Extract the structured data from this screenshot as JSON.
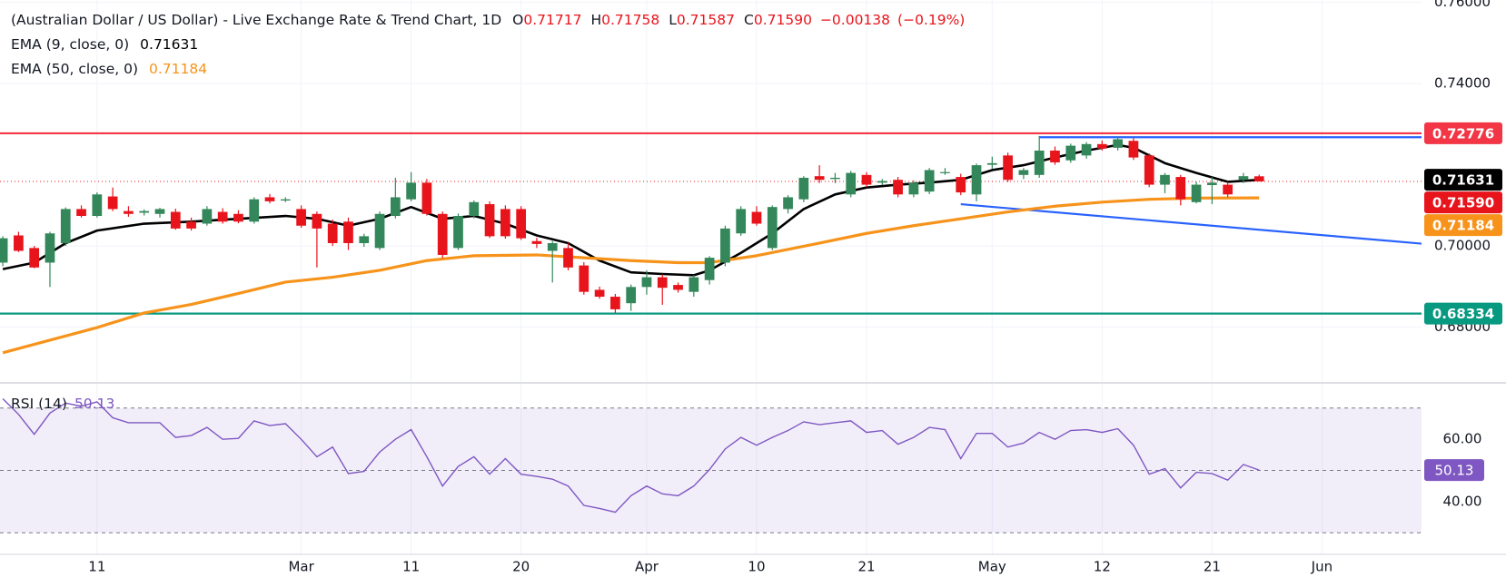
{
  "chart_data": [
    {
      "type": "candlestick",
      "title": "(Australian Dollar / US Dollar) - Live Exchange Rate & Trend Chart, 1D",
      "legend_keys": [
        "O",
        "H",
        "L",
        "C"
      ],
      "legend_values": [
        0.71717,
        0.71758,
        0.71587,
        {
          "value": 0.7159,
          "label": "0.71590"
        }
      ],
      "change": {
        "value": -0.00138,
        "label": "−0.00138"
      },
      "change_pct": {
        "value": -0.19,
        "label": "(−0.19%)"
      },
      "legend_color": "#e8141c",
      "up_color": "#33875a",
      "down_color": "#e8141c",
      "xlim": [
        -0.18,
        90.34
      ],
      "ylim": [
        0.6665,
        0.7606
      ],
      "yticks": [
        {
          "value": 0.76,
          "label": "0.76000"
        },
        {
          "value": 0.74,
          "label": "0.74000"
        },
        {
          "value": 0.7,
          "label": "0.70000"
        },
        {
          "value": 0.68,
          "label": "0.68000"
        }
      ],
      "grid": true,
      "ohlc": [
        [
          0.6959,
          0.7024,
          0.695,
          0.7019
        ],
        [
          0.7026,
          0.7035,
          0.6985,
          0.6988
        ],
        [
          0.6995,
          0.7,
          0.6945,
          0.6947
        ],
        [
          0.6959,
          0.7035,
          0.6899,
          0.7031
        ],
        [
          0.7007,
          0.7095,
          0.7,
          0.7091
        ],
        [
          0.7091,
          0.71,
          0.707,
          0.7074
        ],
        [
          0.7074,
          0.7132,
          0.707,
          0.7127
        ],
        [
          0.7122,
          0.7144,
          0.7086,
          0.7091
        ],
        [
          0.7086,
          0.7098,
          0.7072,
          0.7079
        ],
        [
          0.7082,
          0.709,
          0.7075,
          0.7086
        ],
        [
          0.7079,
          0.7094,
          0.707,
          0.7091
        ],
        [
          0.7084,
          0.7092,
          0.704,
          0.7043
        ],
        [
          0.706,
          0.707,
          0.7038,
          0.7043
        ],
        [
          0.7055,
          0.7098,
          0.705,
          0.7091
        ],
        [
          0.7084,
          0.7093,
          0.7055,
          0.706
        ],
        [
          0.7079,
          0.7088,
          0.7056,
          0.706
        ],
        [
          0.706,
          0.712,
          0.7055,
          0.7115
        ],
        [
          0.712,
          0.7128,
          0.7105,
          0.711
        ],
        [
          0.7112,
          0.712,
          0.7108,
          0.7115
        ],
        [
          0.7091,
          0.71,
          0.7045,
          0.705
        ],
        [
          0.7079,
          0.7085,
          0.6947,
          0.7043
        ],
        [
          0.7055,
          0.7065,
          0.7,
          0.7007
        ],
        [
          0.706,
          0.707,
          0.699,
          0.7007
        ],
        [
          0.7007,
          0.703,
          0.6998,
          0.7024
        ],
        [
          0.6995,
          0.7085,
          0.699,
          0.7079
        ],
        [
          0.7074,
          0.7168,
          0.7068,
          0.712
        ],
        [
          0.7115,
          0.7182,
          0.711,
          0.7156
        ],
        [
          0.7156,
          0.7165,
          0.7075,
          0.7079
        ],
        [
          0.7079,
          0.7085,
          0.697,
          0.6978
        ],
        [
          0.6995,
          0.708,
          0.699,
          0.7074
        ],
        [
          0.7074,
          0.7112,
          0.7068,
          0.7108
        ],
        [
          0.7103,
          0.711,
          0.702,
          0.7024
        ],
        [
          0.7091,
          0.71,
          0.7018,
          0.7024
        ],
        [
          0.7091,
          0.7098,
          0.7015,
          0.7019
        ],
        [
          0.7012,
          0.702,
          0.6995,
          0.7005
        ],
        [
          0.6988,
          0.7012,
          0.691,
          0.7007
        ],
        [
          0.6995,
          0.7008,
          0.694,
          0.6947
        ],
        [
          0.6952,
          0.696,
          0.688,
          0.6887
        ],
        [
          0.6892,
          0.69,
          0.687,
          0.6875
        ],
        [
          0.6875,
          0.6882,
          0.6835,
          0.6844
        ],
        [
          0.6859,
          0.6905,
          0.684,
          0.6899
        ],
        [
          0.6899,
          0.694,
          0.688,
          0.6923
        ],
        [
          0.6923,
          0.693,
          0.6855,
          0.6897
        ],
        [
          0.6904,
          0.691,
          0.6885,
          0.6892
        ],
        [
          0.6887,
          0.6928,
          0.6875,
          0.6923
        ],
        [
          0.6916,
          0.6975,
          0.6905,
          0.6971
        ],
        [
          0.6959,
          0.705,
          0.695,
          0.7043
        ],
        [
          0.7031,
          0.7098,
          0.7025,
          0.7091
        ],
        [
          0.7084,
          0.7098,
          0.705,
          0.7055
        ],
        [
          0.6995,
          0.71,
          0.699,
          0.7096
        ],
        [
          0.7091,
          0.7125,
          0.708,
          0.712
        ],
        [
          0.7115,
          0.7172,
          0.7108,
          0.7168
        ],
        [
          0.7172,
          0.7199,
          0.7155,
          0.7163
        ],
        [
          0.7165,
          0.718,
          0.7155,
          0.7168
        ],
        [
          0.7127,
          0.7185,
          0.712,
          0.718
        ],
        [
          0.7175,
          0.7182,
          0.7145,
          0.7151
        ],
        [
          0.7156,
          0.7165,
          0.715,
          0.716
        ],
        [
          0.7163,
          0.717,
          0.712,
          0.7127
        ],
        [
          0.7127,
          0.7162,
          0.712,
          0.7156
        ],
        [
          0.7134,
          0.7192,
          0.7128,
          0.7187
        ],
        [
          0.718,
          0.7192,
          0.7175,
          0.7182
        ],
        [
          0.717,
          0.7178,
          0.7125,
          0.7132
        ],
        [
          0.7127,
          0.7203,
          0.711,
          0.7199
        ],
        [
          0.72,
          0.722,
          0.719,
          0.7204
        ],
        [
          0.7223,
          0.723,
          0.7158,
          0.7163
        ],
        [
          0.7175,
          0.7192,
          0.7165,
          0.7187
        ],
        [
          0.7175,
          0.7271,
          0.7168,
          0.7235
        ],
        [
          0.7235,
          0.7245,
          0.72,
          0.7206
        ],
        [
          0.7211,
          0.7252,
          0.7205,
          0.7247
        ],
        [
          0.7223,
          0.7256,
          0.7215,
          0.7251
        ],
        [
          0.7251,
          0.726,
          0.7235,
          0.724
        ],
        [
          0.7242,
          0.727,
          0.7235,
          0.7263
        ],
        [
          0.7259,
          0.7266,
          0.7212,
          0.7218
        ],
        [
          0.7223,
          0.7228,
          0.7145,
          0.7151
        ],
        [
          0.7151,
          0.718,
          0.713,
          0.7175
        ],
        [
          0.717,
          0.7175,
          0.71,
          0.7115
        ],
        [
          0.7108,
          0.7158,
          0.7105,
          0.7151
        ],
        [
          0.715,
          0.717,
          0.7103,
          0.7156
        ],
        [
          0.7151,
          0.7158,
          0.712,
          0.7127
        ],
        [
          0.7163,
          0.718,
          0.7155,
          0.7172
        ],
        [
          0.71717,
          0.71758,
          0.71587,
          0.7159
        ]
      ],
      "series": [
        {
          "name": "EMA (9, close, 0)",
          "color": "#000000",
          "width": 2.6,
          "last": 0.71631,
          "x": [
            0,
            2,
            4,
            6,
            9,
            12,
            15,
            18,
            20,
            22,
            24,
            26,
            28,
            30,
            32,
            34,
            36,
            38,
            40,
            42,
            44,
            45,
            47,
            49,
            51,
            53,
            55,
            57,
            59,
            61,
            63,
            65,
            67,
            69,
            71,
            72,
            74,
            76,
            78,
            80
          ],
          "values": [
            0.6943,
            0.6959,
            0.7007,
            0.7038,
            0.7055,
            0.706,
            0.7067,
            0.7074,
            0.7067,
            0.705,
            0.7067,
            0.7096,
            0.7067,
            0.7074,
            0.7055,
            0.7026,
            0.7007,
            0.6964,
            0.6935,
            0.6931,
            0.6928,
            0.694,
            0.6983,
            0.7031,
            0.7091,
            0.7127,
            0.7144,
            0.7151,
            0.7156,
            0.7163,
            0.7187,
            0.7199,
            0.7218,
            0.7235,
            0.7249,
            0.7242,
            0.7204,
            0.718,
            0.7158,
            0.71631
          ]
        },
        {
          "name": "EMA (50, close, 0)",
          "color": "#f7931a",
          "width": 3.2,
          "last": 0.71184,
          "x": [
            0,
            6,
            9,
            12,
            15,
            18,
            21,
            24,
            27,
            30,
            34,
            37,
            40,
            43,
            45,
            48,
            52,
            55,
            58,
            61,
            64,
            67,
            70,
            73,
            76,
            80
          ],
          "values": [
            0.6737,
            0.6799,
            0.6835,
            0.6856,
            0.6883,
            0.6911,
            0.6923,
            0.694,
            0.6964,
            0.6976,
            0.6978,
            0.6971,
            0.6964,
            0.6959,
            0.6959,
            0.6976,
            0.7007,
            0.7031,
            0.705,
            0.7067,
            0.7084,
            0.7098,
            0.7108,
            0.7115,
            0.7118,
            0.71184
          ]
        }
      ],
      "trendlines": [
        {
          "color": "#2962ff",
          "x": [
            66,
            90.34
          ],
          "values": [
            0.7268,
            0.7268
          ]
        },
        {
          "color": "#2962ff",
          "x": [
            61,
            95.7
          ],
          "values": [
            0.7103,
            0.6988
          ]
        }
      ],
      "markers": [
        {
          "value": 0.72776,
          "color": "#f23645",
          "line": "solid"
        },
        {
          "value": 0.71631,
          "color": "#000000"
        },
        {
          "value": {
            "value": 0.7159,
            "label": "0.71590"
          },
          "color": "#e8141c",
          "line": "dotted"
        },
        {
          "value": 0.71184,
          "color": "#f7931a"
        },
        {
          "value": 0.68334,
          "color": "#089981",
          "line": "solid"
        }
      ]
    },
    {
      "type": "line",
      "name": "RSI (14)",
      "color": "#7e57c2",
      "last": 50.13,
      "xlim": [
        -0.18,
        90.34
      ],
      "ylim": [
        23.1,
        77.8
      ],
      "yticks": [
        {
          "value": 60,
          "label": "60.00"
        },
        {
          "value": 40,
          "label": "40.00"
        }
      ],
      "band": [
        30,
        70
      ],
      "mid": 50,
      "xticks": [
        {
          "value": 6,
          "label": "11"
        },
        {
          "value": 19,
          "label": "Mar"
        },
        {
          "value": 26,
          "label": "11"
        },
        {
          "value": 33,
          "label": "20"
        },
        {
          "value": 41,
          "label": "Apr"
        },
        {
          "value": 48,
          "label": "10"
        },
        {
          "value": 55,
          "label": "21"
        },
        {
          "value": 63,
          "label": "May"
        },
        {
          "value": 70,
          "label": "12"
        },
        {
          "value": 77,
          "label": "21"
        },
        {
          "value": 84,
          "label": "Jun"
        }
      ],
      "values": [
        73,
        68,
        61.6,
        68.4,
        71.6,
        70.6,
        72,
        66.9,
        65.3,
        65.3,
        65.3,
        60.6,
        61.2,
        63.8,
        60,
        60.3,
        65.9,
        64.4,
        65,
        60,
        54.4,
        57.5,
        49,
        49.7,
        55.9,
        60,
        63.1,
        54.4,
        45,
        51.3,
        54.4,
        48.8,
        53.8,
        48.8,
        48.1,
        47.2,
        45,
        38.8,
        37.8,
        36.6,
        41.9,
        45,
        42.5,
        41.9,
        45,
        50.3,
        56.9,
        60.6,
        58.1,
        60.6,
        62.8,
        65.6,
        64.7,
        65.3,
        65.9,
        62.2,
        62.8,
        58.4,
        60.6,
        63.8,
        63.1,
        53.8,
        61.9,
        61.9,
        57.5,
        58.8,
        62.2,
        60,
        62.8,
        63.1,
        62.2,
        63.4,
        58.1,
        48.8,
        50.6,
        44.4,
        49.4,
        49,
        46.9,
        51.9,
        50.13
      ]
    }
  ]
}
